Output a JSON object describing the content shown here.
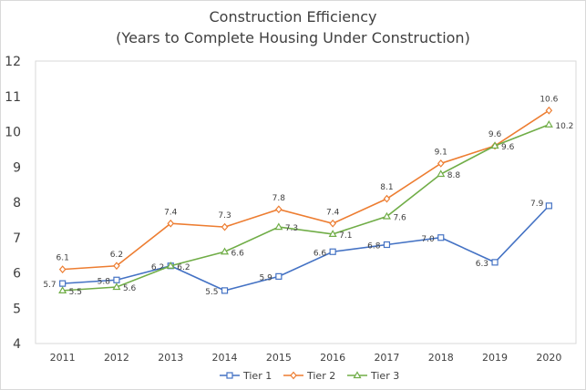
{
  "chart_data": {
    "type": "line",
    "title": "Construction Efficiency",
    "subtitle": "(Years to Complete Housing Under Construction)",
    "categories": [
      "2011",
      "2012",
      "2013",
      "2014",
      "2015",
      "2016",
      "2017",
      "2018",
      "2019",
      "2020"
    ],
    "ylim": [
      4,
      12
    ],
    "yticks": [
      "4",
      "5",
      "6",
      "7",
      "8",
      "9",
      "10",
      "11",
      "12"
    ],
    "grid": false,
    "legend_position": "bottom",
    "series": [
      {
        "name": "Tier 1",
        "color": "#4472C4",
        "marker": "square",
        "values": [
          5.7,
          5.8,
          6.2,
          5.5,
          5.9,
          6.6,
          6.8,
          7.0,
          6.3,
          7.9
        ]
      },
      {
        "name": "Tier 2",
        "color": "#ED7D31",
        "marker": "diamond",
        "values": [
          6.1,
          6.2,
          7.4,
          7.3,
          7.8,
          7.4,
          8.1,
          9.1,
          9.6,
          10.6
        ]
      },
      {
        "name": "Tier 3",
        "color": "#70AD47",
        "marker": "triangle",
        "values": [
          5.5,
          5.6,
          6.2,
          6.6,
          7.3,
          7.1,
          7.6,
          8.8,
          9.6,
          10.2
        ]
      }
    ]
  }
}
